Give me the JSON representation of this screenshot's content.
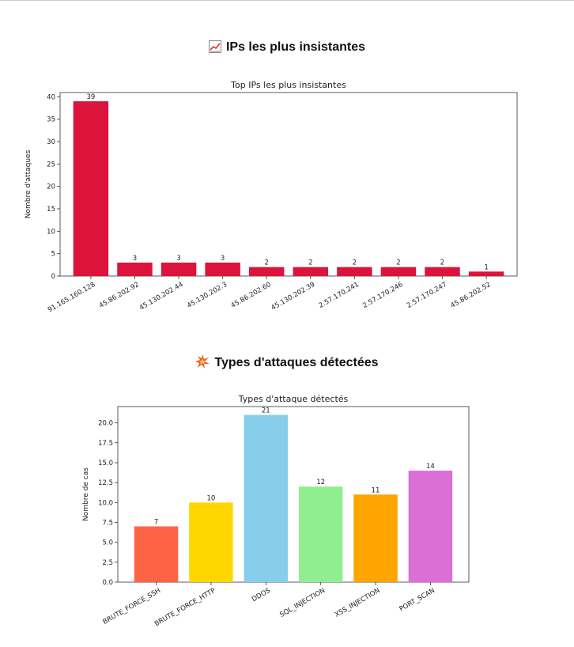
{
  "sections": {
    "ips_heading": "IPs les plus insistantes",
    "ips_icon": "chart-increasing-icon",
    "types_heading": "Types d'attaques détectées",
    "types_icon": "collision-icon"
  },
  "chart_data": [
    {
      "type": "bar",
      "title": "Top IPs les plus insistantes",
      "xlabel": "",
      "ylabel": "Nombre d'attaques",
      "categories": [
        "91.165.160.128",
        "45.86.202.92",
        "45.130.202.44",
        "45.130.202.3",
        "45.86.202.60",
        "45.130.202.39",
        "2.57.170.241",
        "2.57.170.246",
        "2.57.170.247",
        "45.86.202.52"
      ],
      "values": [
        39,
        3,
        3,
        3,
        2,
        2,
        2,
        2,
        2,
        1
      ],
      "data_labels": [
        "39",
        "3",
        "3",
        "3",
        "2",
        "2",
        "2",
        "2",
        "2",
        "1"
      ],
      "yticks": [
        0,
        5,
        10,
        15,
        20,
        25,
        30,
        35,
        40
      ],
      "ytick_labels": [
        "0",
        "5",
        "10",
        "15",
        "20",
        "25",
        "30",
        "35",
        "40"
      ],
      "ylim": [
        0,
        40.95
      ],
      "color": "#dc143c",
      "grid": false
    },
    {
      "type": "bar",
      "title": "Types d'attaque détectés",
      "xlabel": "",
      "ylabel": "Nombre de cas",
      "categories": [
        "BRUTE_FORCE_SSH",
        "BRUTE_FORCE_HTTP",
        "DDOS",
        "SQL_INJECTION",
        "XSS_INJECTION",
        "PORT_SCAN"
      ],
      "values": [
        7,
        10,
        21,
        12,
        11,
        14
      ],
      "data_labels": [
        "7",
        "10",
        "21",
        "12",
        "11",
        "14"
      ],
      "yticks": [
        0,
        2.5,
        5,
        7.5,
        10,
        12.5,
        15,
        17.5,
        20
      ],
      "ytick_labels": [
        "0.0",
        "2.5",
        "5.0",
        "7.5",
        "10.0",
        "12.5",
        "15.0",
        "17.5",
        "20.0"
      ],
      "ylim": [
        0,
        22.05
      ],
      "colors": [
        "#ff6347",
        "#ffd700",
        "#87ceeb",
        "#90ee90",
        "#ffa500",
        "#da70d6"
      ],
      "grid": false
    }
  ]
}
